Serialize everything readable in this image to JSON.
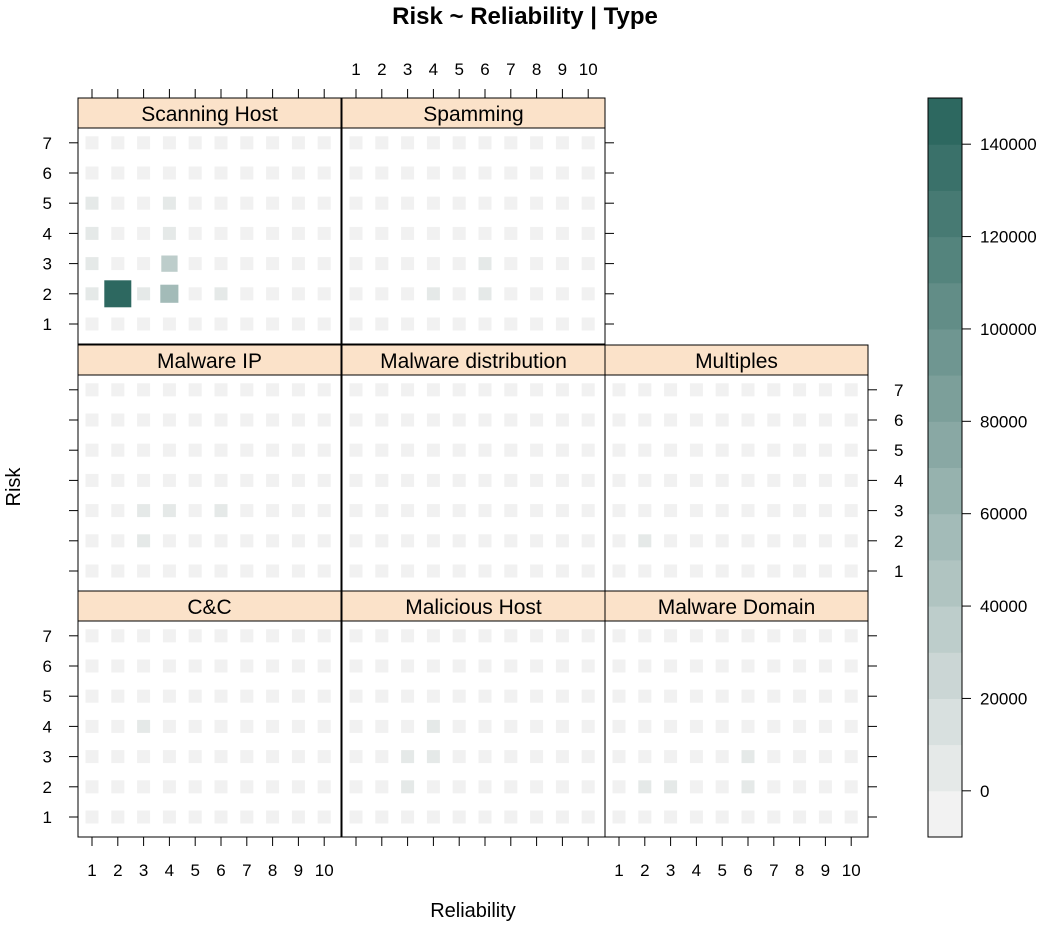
{
  "chart_data": {
    "type": "heatmap",
    "title": "Risk ~ Reliability | Type",
    "xlabel": "Reliability",
    "ylabel": "Risk",
    "x_ticks": [
      "1",
      "2",
      "3",
      "4",
      "5",
      "6",
      "7",
      "8",
      "9",
      "10"
    ],
    "y_ticks": [
      "1",
      "2",
      "3",
      "4",
      "5",
      "6",
      "7"
    ],
    "colorbar": {
      "range": [
        -10000,
        150000
      ],
      "tick_labels": [
        "0",
        "20000",
        "40000",
        "60000",
        "80000",
        "100000",
        "120000",
        "140000"
      ],
      "low_color": "#f2f2f2",
      "high_color": "#2d6860"
    },
    "panels": [
      {
        "name": "Scanning Host",
        "cells": [
          {
            "x": 1,
            "y": 2,
            "v": 5000
          },
          {
            "x": 1,
            "y": 3,
            "v": 6000
          },
          {
            "x": 1,
            "y": 4,
            "v": 6000
          },
          {
            "x": 1,
            "y": 5,
            "v": 5000
          },
          {
            "x": 2,
            "y": 2,
            "v": 150000
          },
          {
            "x": 3,
            "y": 2,
            "v": 5000
          },
          {
            "x": 4,
            "y": 2,
            "v": 55000
          },
          {
            "x": 4,
            "y": 3,
            "v": 35000
          },
          {
            "x": 4,
            "y": 4,
            "v": 6000
          },
          {
            "x": 4,
            "y": 5,
            "v": 6000
          },
          {
            "x": 6,
            "y": 2,
            "v": 4000
          }
        ]
      },
      {
        "name": "Spamming",
        "cells": [
          {
            "x": 4,
            "y": 2,
            "v": 5000
          },
          {
            "x": 6,
            "y": 2,
            "v": 4000
          },
          {
            "x": 6,
            "y": 3,
            "v": 4000
          }
        ]
      },
      {
        "name": "Malware IP",
        "cells": [
          {
            "x": 3,
            "y": 2,
            "v": 5000
          },
          {
            "x": 3,
            "y": 3,
            "v": 5000
          },
          {
            "x": 4,
            "y": 3,
            "v": 5000
          },
          {
            "x": 6,
            "y": 3,
            "v": 5000
          }
        ]
      },
      {
        "name": "Malware distribution",
        "cells": []
      },
      {
        "name": "Multiples",
        "cells": [
          {
            "x": 2,
            "y": 2,
            "v": 5000
          }
        ]
      },
      {
        "name": "C&C",
        "cells": [
          {
            "x": 3,
            "y": 4,
            "v": 7000
          }
        ]
      },
      {
        "name": "Malicious Host",
        "cells": [
          {
            "x": 3,
            "y": 2,
            "v": 5000
          },
          {
            "x": 3,
            "y": 3,
            "v": 6000
          },
          {
            "x": 4,
            "y": 3,
            "v": 6000
          },
          {
            "x": 4,
            "y": 4,
            "v": 7000
          }
        ]
      },
      {
        "name": "Malware Domain",
        "cells": [
          {
            "x": 2,
            "y": 2,
            "v": 6000
          },
          {
            "x": 3,
            "y": 2,
            "v": 5000
          },
          {
            "x": 6,
            "y": 2,
            "v": 6000
          },
          {
            "x": 6,
            "y": 3,
            "v": 5000
          }
        ]
      }
    ]
  }
}
